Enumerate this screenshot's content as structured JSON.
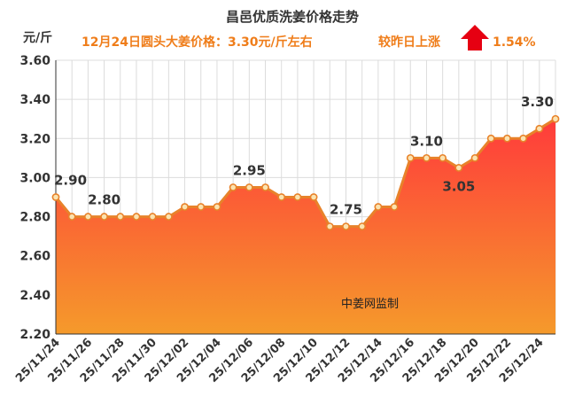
{
  "header": {
    "title": "昌邑优质洗姜价格走势",
    "unit": "元/斤",
    "price_note": "12月24日圆头大姜价格：3.30元/斤左右",
    "change_label": "较昨日上涨",
    "change_value": "1.54%"
  },
  "watermark": "中姜网监制",
  "colors": {
    "line": "#e8822a",
    "marker_fill": "#fbe3b0",
    "area_top": "#ff3b3b",
    "area_bottom": "#f59a2b",
    "arrow": "#e60012",
    "grid": "#dcdcdc",
    "text_orange": "#ef7d1a"
  },
  "chart_data": {
    "type": "area",
    "title": "昌邑优质洗姜价格走势",
    "ylabel": "元/斤",
    "xlabel": "",
    "ylim": [
      2.2,
      3.6
    ],
    "yticks": [
      "2.20",
      "2.40",
      "2.60",
      "2.80",
      "3.00",
      "3.20",
      "3.40",
      "3.60"
    ],
    "xtick_labels": [
      "25/11/24",
      "25/11/26",
      "25/11/28",
      "25/11/30",
      "25/12/02",
      "25/12/04",
      "25/12/06",
      "25/12/08",
      "25/12/10",
      "25/12/12",
      "25/12/14",
      "25/12/16",
      "25/12/18",
      "25/12/20",
      "25/12/22",
      "25/12/24"
    ],
    "values": [
      2.9,
      2.8,
      2.8,
      2.8,
      2.8,
      2.8,
      2.8,
      2.8,
      2.85,
      2.85,
      2.85,
      2.95,
      2.95,
      2.95,
      2.9,
      2.9,
      2.9,
      2.75,
      2.75,
      2.75,
      2.85,
      2.85,
      3.1,
      3.1,
      3.1,
      3.05,
      3.1,
      3.2,
      3.2,
      3.2,
      3.25,
      3.3
    ],
    "data_labels": [
      {
        "index": 0,
        "text": "2.90"
      },
      {
        "index": 3,
        "text": "2.80"
      },
      {
        "index": 12,
        "text": "2.95"
      },
      {
        "index": 18,
        "text": "2.75"
      },
      {
        "index": 23,
        "text": "3.10"
      },
      {
        "index": 25,
        "text": "3.05"
      },
      {
        "index": 31,
        "text": "3.30"
      }
    ]
  }
}
